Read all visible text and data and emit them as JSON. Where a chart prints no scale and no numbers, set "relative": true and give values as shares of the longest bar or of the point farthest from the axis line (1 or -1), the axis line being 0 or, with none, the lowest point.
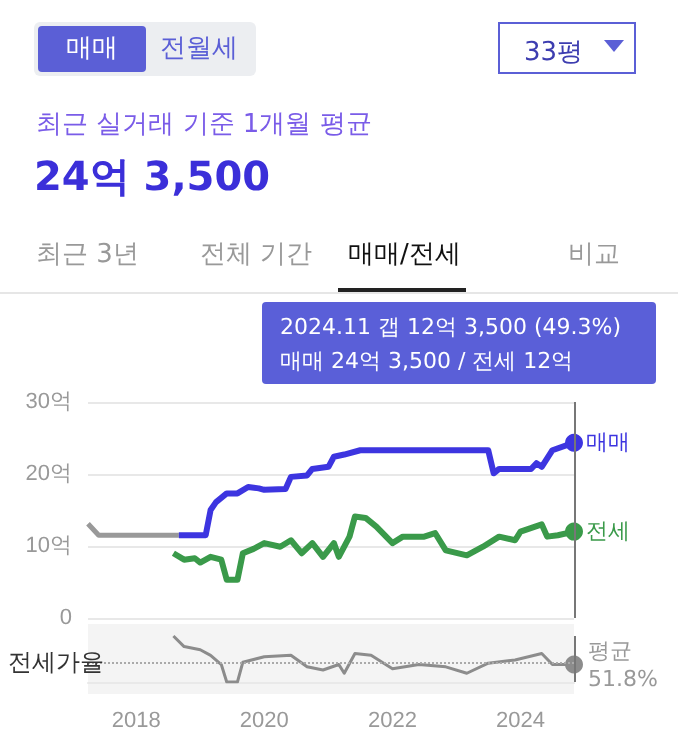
{
  "chart_data": [
    {
      "type": "line",
      "title": "24억 3,500",
      "subtitle": "최근 실거래 기준 1개월 평균",
      "annotations": [
        "매매",
        "전월세",
        "33평",
        "최근 3년",
        "전체 기간",
        "매매/전세",
        "비교",
        "2024.11  갭 12억 3,500 (49.3%)",
        "매매 24억 3,500 / 전세 12억"
      ],
      "series": [
        {
          "color": "#999999",
          "x": [
            "2017-04",
            "2017-06",
            "2018-09"
          ],
          "values": [
            13.1,
            11.5,
            11.5
          ]
        },
        {
          "name": "매매",
          "color": "#3d35e0",
          "x": [
            "2018-09",
            "2019-02",
            "2019-03",
            "2019-04",
            "2019-06",
            "2019-08",
            "2019-10",
            "2019-12",
            "2020-01",
            "2020-05",
            "2020-06",
            "2020-09",
            "2020-10",
            "2021-01",
            "2021-02",
            "2021-04",
            "2021-07",
            "2023-07",
            "2023-08",
            "2023-09",
            "2024-03",
            "2024-04",
            "2024-05",
            "2024-07",
            "2024-11"
          ],
          "values": [
            11.5,
            11.5,
            15.0,
            16.1,
            17.3,
            17.3,
            18.2,
            18.0,
            17.8,
            17.9,
            19.6,
            19.8,
            20.7,
            21.0,
            22.4,
            22.7,
            23.3,
            23.3,
            20.1,
            20.7,
            20.7,
            21.5,
            21.0,
            23.3,
            24.35
          ]
        },
        {
          "name": "전세",
          "color": "#3a9a4a",
          "x": [
            "2018-08",
            "2018-10",
            "2018-12",
            "2019-01",
            "2019-03",
            "2019-05",
            "2019-06",
            "2019-08",
            "2019-09",
            "2019-11",
            "2020-01",
            "2020-04",
            "2020-06",
            "2020-08",
            "2020-10",
            "2020-12",
            "2021-02",
            "2021-03",
            "2021-05",
            "2021-06",
            "2021-08",
            "2021-10",
            "2022-01",
            "2022-03",
            "2022-07",
            "2022-09",
            "2022-11",
            "2023-03",
            "2023-06",
            "2023-09",
            "2023-12",
            "2024-01",
            "2024-05",
            "2024-06",
            "2024-08",
            "2024-11"
          ],
          "values": [
            9.0,
            8.1,
            8.3,
            7.7,
            8.5,
            8.1,
            5.3,
            5.3,
            9.0,
            9.6,
            10.4,
            9.9,
            10.8,
            9.0,
            10.4,
            8.5,
            10.4,
            8.5,
            11.3,
            14.1,
            13.9,
            12.7,
            10.4,
            11.3,
            11.3,
            11.8,
            9.4,
            8.7,
            9.9,
            11.3,
            10.8,
            12.0,
            13.0,
            11.3,
            11.5,
            12.0
          ]
        }
      ],
      "xlim": [
        "2017-04",
        "2024-11"
      ],
      "ylim": [
        0,
        30
      ],
      "yticks": [
        0,
        {
          "value": 10,
          "label": "10억"
        },
        {
          "value": 20,
          "label": "20억"
        },
        {
          "value": 30,
          "label": "30억"
        }
      ],
      "grid": "y",
      "legend": false,
      "tick_labels": "y",
      "ref_lines": [
        {
          "axis": "x",
          "value": "2024-11",
          "color": "#777777"
        }
      ]
    },
    {
      "type": "line",
      "ylabel": "전세가율",
      "relative": true,
      "series": [
        {
          "color": "#8c8c8c",
          "x": [
            "2018-08",
            "2018-10",
            "2019-01",
            "2019-03",
            "2019-05",
            "2019-06",
            "2019-08",
            "2019-09",
            "2020-01",
            "2020-06",
            "2020-09",
            "2020-12",
            "2021-03",
            "2021-04",
            "2021-06",
            "2021-09",
            "2022-01",
            "2022-06",
            "2022-11",
            "2023-03",
            "2023-07",
            "2023-12",
            "2024-05",
            "2024-07",
            "2024-11"
          ],
          "values": [
            1.0,
            0.77,
            0.7,
            0.58,
            0.38,
            0,
            0,
            0.43,
            0.55,
            0.58,
            0.33,
            0.26,
            0.38,
            0.19,
            0.62,
            0.58,
            0.29,
            0.38,
            0.33,
            0.19,
            0.41,
            0.48,
            0.62,
            0.38,
            0.38
          ]
        }
      ],
      "xlim": [
        "2017-04",
        "2024-11"
      ],
      "xticks": [
        "2018",
        "2020",
        "2022",
        "2024"
      ],
      "tick_labels": "x",
      "ref_lines": [
        {
          "axis": "y",
          "value": 0.41,
          "label": "평균 51.8%",
          "color": "#aaaaaa",
          "line_style": "dotted"
        },
        {
          "axis": "x",
          "value": "2024-11",
          "color": "#777777"
        }
      ]
    }
  ]
}
